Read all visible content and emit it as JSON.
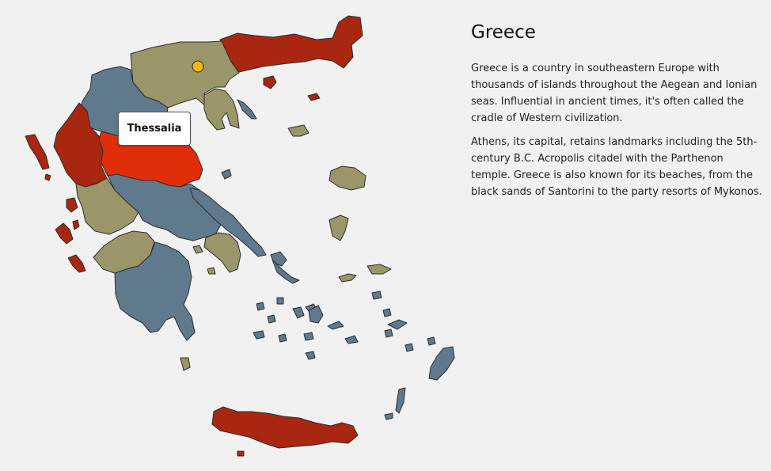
{
  "country": {
    "title": "Greece",
    "paragraphs": [
      "Greece is a country in southeastern Europe with thousands of islands throughout the Aegean and Ionian seas. Influential in ancient times, it's often called the cradle of Western civilization.",
      "Athens, its capital, retains landmarks including the 5th-century B.C. Acropolis citadel with the Parthenon temple. Greece is also known for its beaches, from the black sands of Santorini to the party resorts of Mykonos."
    ]
  },
  "map": {
    "hovered_region": "Thessalia",
    "colors": {
      "background": "#f2f1f1",
      "red": "#a92610",
      "highlight": "#e02e0a",
      "blue": "#5f7a8c",
      "olive": "#9a9669",
      "marker": "#f5b800",
      "border": "#2e2e2e"
    }
  }
}
